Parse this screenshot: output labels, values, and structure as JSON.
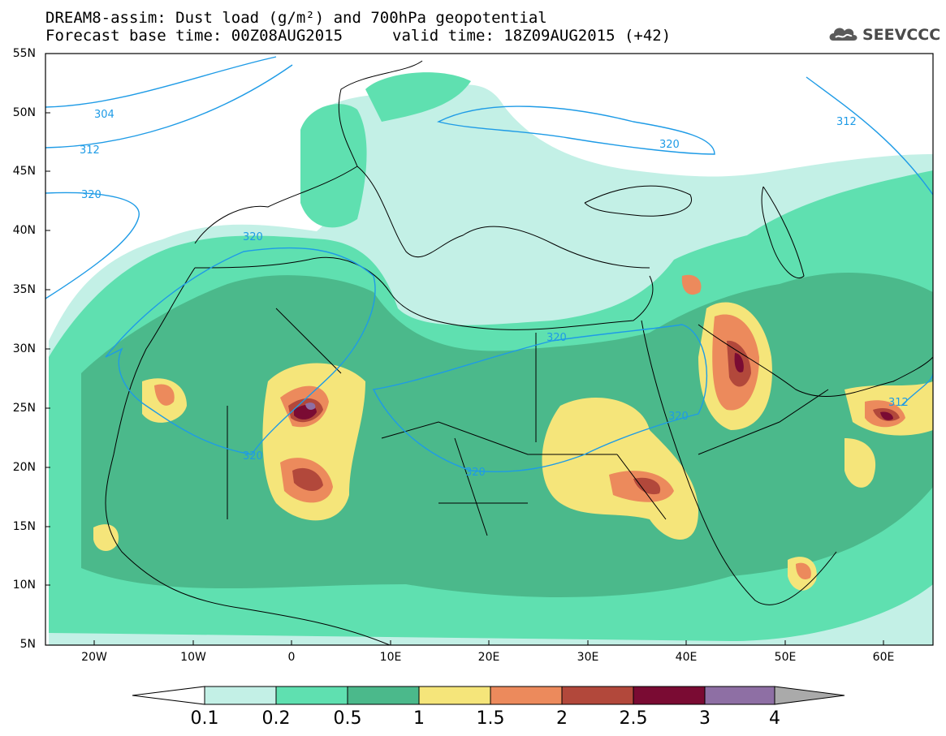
{
  "header": {
    "title_line1": "DREAM8-assim: Dust load (g/m²) and 700hPa geopotential",
    "title_line2": "Forecast base time: 00Z08AUG2015",
    "valid_time": "valid time: 18Z09AUG2015 (+42)",
    "logo_text": "SEEVCCC",
    "logo_icon": "cloud-icon"
  },
  "map": {
    "lat_labels": [
      "55N",
      "50N",
      "45N",
      "40N",
      "35N",
      "30N",
      "25N",
      "20N",
      "15N",
      "10N",
      "5N"
    ],
    "lon_labels": [
      "20W",
      "10W",
      "0",
      "10E",
      "20E",
      "30E",
      "40E",
      "50E",
      "60E"
    ],
    "contour_labels": [
      "304",
      "312",
      "320",
      "320",
      "320",
      "320",
      "320",
      "320",
      "320",
      "312",
      "312"
    ]
  },
  "colorbar": {
    "labels": [
      "0.1",
      "0.2",
      "0.5",
      "1",
      "1.5",
      "2",
      "2.5",
      "3",
      "4"
    ],
    "colors": [
      "#c3f0e6",
      "#5fe0b0",
      "#4bb98b",
      "#f5e57a",
      "#ec8a5c",
      "#b2483b",
      "#7a0b33",
      "#8e6fa4",
      "#aaaaaa"
    ]
  }
}
